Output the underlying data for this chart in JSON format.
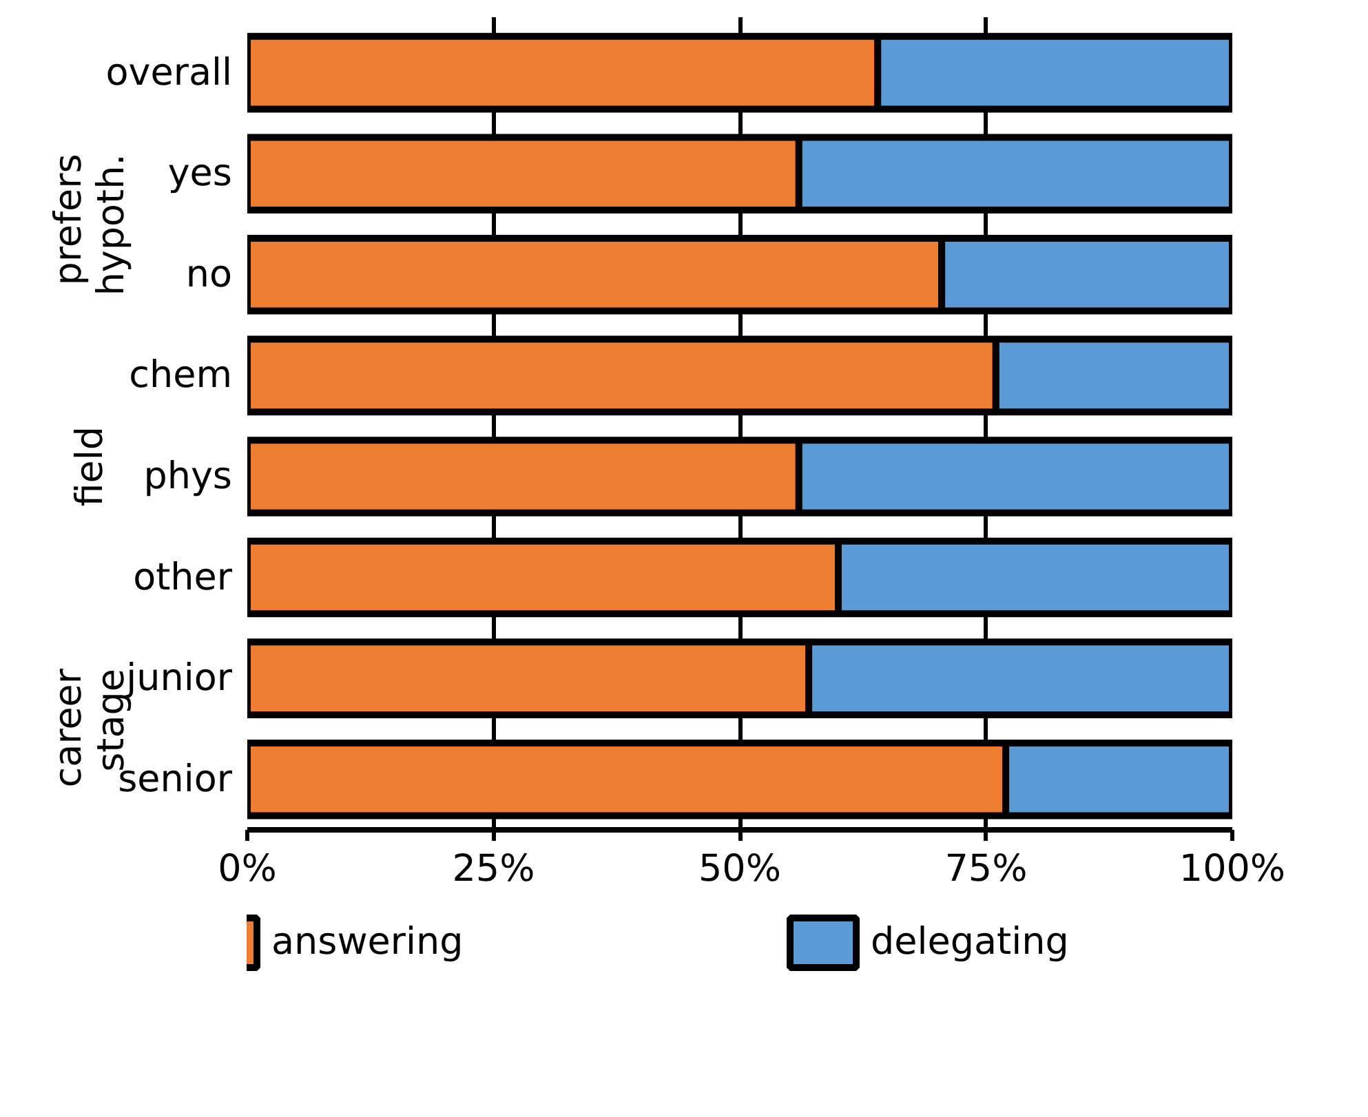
{
  "chart_data": {
    "type": "bar",
    "orientation": "horizontal",
    "stacked": true,
    "categories": [
      "overall",
      "yes",
      "no",
      "chem",
      "phys",
      "other",
      "junior",
      "senior"
    ],
    "series": [
      {
        "name": "answering",
        "color": "#ed7d31",
        "values": [
          64,
          56,
          70.5,
          76,
          56,
          60,
          57,
          77
        ]
      },
      {
        "name": "delegating",
        "color": "#5b9bd5",
        "values": [
          36,
          44,
          29.5,
          24,
          44,
          40,
          43,
          23
        ]
      }
    ],
    "xlim": [
      0,
      100
    ],
    "xticks": [
      {
        "value": 0,
        "label": "0%"
      },
      {
        "value": 25,
        "label": "25%"
      },
      {
        "value": 50,
        "label": "50%"
      },
      {
        "value": 75,
        "label": "75%"
      },
      {
        "value": 100,
        "label": "100%"
      }
    ],
    "annotations": [
      "prefers hypoth.",
      "field",
      "career stage"
    ],
    "grid": "x",
    "legend": "bottom"
  }
}
